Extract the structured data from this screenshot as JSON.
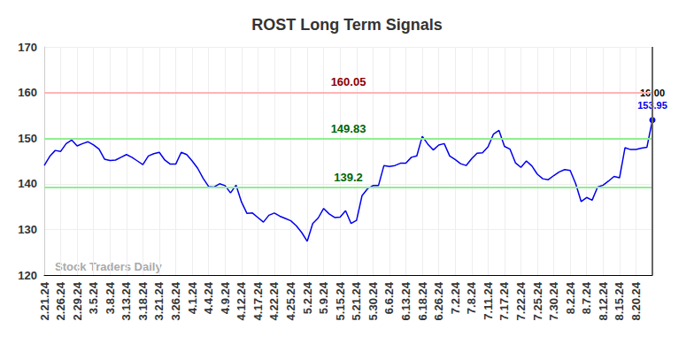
{
  "chart_data": {
    "type": "line",
    "title": "ROST Long Term Signals",
    "watermark": "Stock Traders Daily",
    "categories": [
      "2.21.24",
      null,
      null,
      "2.26.24",
      null,
      null,
      "2.29.24",
      null,
      null,
      "3.5.24",
      null,
      null,
      "3.8.24",
      null,
      null,
      "3.13.24",
      null,
      null,
      "3.18.24",
      null,
      null,
      "3.21.24",
      null,
      null,
      "3.26.24",
      null,
      null,
      "4.1.24",
      null,
      null,
      "4.4.24",
      null,
      null,
      "4.9.24",
      null,
      null,
      "4.12.24",
      null,
      null,
      "4.17.24",
      null,
      null,
      "4.22.24",
      null,
      null,
      "4.25.24",
      null,
      null,
      "5.2.24",
      null,
      null,
      "5.9.24",
      null,
      null,
      "5.15.24",
      null,
      null,
      "5.21.24",
      null,
      null,
      "5.30.24",
      null,
      null,
      "6.6.24",
      null,
      null,
      "6.13.24",
      null,
      null,
      "6.18.24",
      null,
      null,
      "6.26.24",
      null,
      null,
      "7.2.24",
      null,
      null,
      "7.8.24",
      null,
      null,
      "7.11.24",
      null,
      null,
      "7.17.24",
      null,
      null,
      "7.22.24",
      null,
      null,
      "7.25.24",
      null,
      null,
      "7.30.24",
      null,
      null,
      "8.2.24",
      null,
      null,
      "8.7.24",
      null,
      null,
      "8.12.24",
      null,
      null,
      "8.15.24",
      null,
      null,
      "8.20.24",
      null,
      null,
      null
    ],
    "values": [
      144,
      146,
      147.3,
      147.1,
      148.8,
      149.6,
      148.3,
      148.8,
      149.2,
      148.5,
      147.6,
      145.4,
      145.1,
      145.2,
      145.8,
      146.4,
      145.8,
      145,
      144.2,
      146.1,
      146.6,
      146.9,
      145.2,
      144.3,
      144.3,
      146.9,
      146.4,
      145,
      143.4,
      141.2,
      139.4,
      139.3,
      140,
      139.6,
      138,
      139.7,
      136,
      133.5,
      133.6,
      132.6,
      131.6,
      133.1,
      133.6,
      132.9,
      132.4,
      131.9,
      130.8,
      129.3,
      127.4,
      131.3,
      132.5,
      134.6,
      133.4,
      132.6,
      132.7,
      134.1,
      131.3,
      132,
      137.4,
      138.9,
      139.6,
      139.6,
      144,
      143.8,
      144,
      144.5,
      144.5,
      145.8,
      146.1,
      150.4,
      148.7,
      147.4,
      148.5,
      148.8,
      146.1,
      145.3,
      144.4,
      144,
      145.5,
      146.7,
      146.8,
      148.1,
      150.9,
      151.7,
      148.2,
      147.6,
      144.6,
      143.6,
      145,
      143.9,
      142.1,
      141.1,
      140.9,
      141.8,
      142.6,
      143.1,
      142.9,
      140,
      136.1,
      137,
      136.4,
      139.3,
      139.7,
      140.6,
      141.6,
      141.3,
      147.9,
      147.5,
      147.5,
      147.8,
      148,
      153.95
    ],
    "color": "#0000ee",
    "ylim": [
      120,
      170
    ],
    "yticks": [
      120,
      130,
      140,
      150,
      160,
      170
    ],
    "grid": true,
    "reference_lines": [
      {
        "value": 160.05,
        "color": "#ffb3b3",
        "label_color": "#8b0000"
      },
      {
        "value": 149.83,
        "color": "#90ee90",
        "label_color": "#006400"
      },
      {
        "value": 139.2,
        "color": "#90ee90",
        "label_color": "#006400"
      }
    ],
    "last_point": {
      "label": "16:00"
    }
  }
}
